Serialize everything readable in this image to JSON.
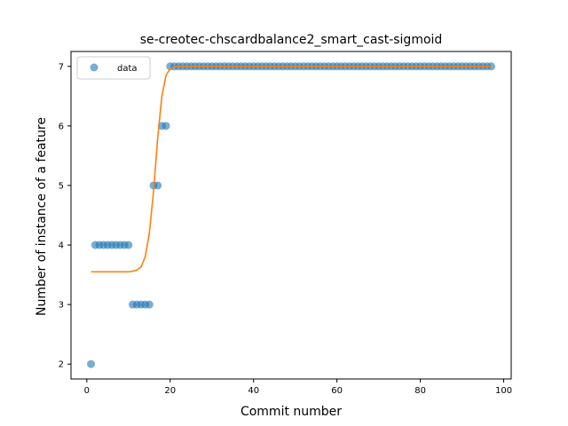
{
  "chart_data": {
    "type": "scatter",
    "title": "se-creotec-chscardbalance2_smart_cast-sigmoid",
    "xlabel": "Commit number",
    "ylabel": "Number of instance of a feature",
    "xlim": [
      -3.8,
      101.8
    ],
    "ylim": [
      1.75,
      7.25
    ],
    "xticks": [
      0,
      20,
      40,
      60,
      80,
      100
    ],
    "yticks": [
      2,
      3,
      4,
      5,
      6,
      7
    ],
    "grid": false,
    "legend_position": "top-left",
    "series": [
      {
        "name": "data",
        "kind": "scatter",
        "color": "#1f77b4",
        "x": [
          1,
          2,
          3,
          4,
          5,
          6,
          7,
          8,
          9,
          10,
          11,
          12,
          13,
          14,
          15,
          16,
          17,
          18,
          19,
          20,
          21,
          22,
          23,
          24,
          25,
          26,
          27,
          28,
          29,
          30,
          31,
          32,
          33,
          34,
          35,
          36,
          37,
          38,
          39,
          40,
          41,
          42,
          43,
          44,
          45,
          46,
          47,
          48,
          49,
          50,
          51,
          52,
          53,
          54,
          55,
          56,
          57,
          58,
          59,
          60,
          61,
          62,
          63,
          64,
          65,
          66,
          67,
          68,
          69,
          70,
          71,
          72,
          73,
          74,
          75,
          76,
          77,
          78,
          79,
          80,
          81,
          82,
          83,
          84,
          85,
          86,
          87,
          88,
          89,
          90,
          91,
          92,
          93,
          94,
          95,
          96,
          97
        ],
        "y": [
          2,
          4,
          4,
          4,
          4,
          4,
          4,
          4,
          4,
          4,
          3,
          3,
          3,
          3,
          3,
          5,
          5,
          6,
          6,
          7,
          7,
          7,
          7,
          7,
          7,
          7,
          7,
          7,
          7,
          7,
          7,
          7,
          7,
          7,
          7,
          7,
          7,
          7,
          7,
          7,
          7,
          7,
          7,
          7,
          7,
          7,
          7,
          7,
          7,
          7,
          7,
          7,
          7,
          7,
          7,
          7,
          7,
          7,
          7,
          7,
          7,
          7,
          7,
          7,
          7,
          7,
          7,
          7,
          7,
          7,
          7,
          7,
          7,
          7,
          7,
          7,
          7,
          7,
          7,
          7,
          7,
          7,
          7,
          7,
          7,
          7,
          7,
          7,
          7,
          7,
          7,
          7,
          7,
          7,
          7,
          7,
          7
        ]
      },
      {
        "kind": "line",
        "color": "#ff7f0e",
        "x": [
          1,
          2,
          3,
          4,
          5,
          6,
          7,
          8,
          9,
          10,
          11,
          12,
          13,
          14,
          15,
          16,
          17,
          18,
          19,
          20,
          21,
          22,
          23,
          24,
          25,
          30,
          40,
          50,
          60,
          70,
          80,
          90,
          97
        ],
        "y": [
          3.55,
          3.55,
          3.55,
          3.55,
          3.55,
          3.55,
          3.55,
          3.55,
          3.55,
          3.55,
          3.56,
          3.58,
          3.63,
          3.8,
          4.2,
          4.9,
          5.8,
          6.5,
          6.85,
          6.96,
          6.99,
          7.0,
          7.0,
          7.0,
          7.0,
          7.0,
          7.0,
          7.0,
          7.0,
          7.0,
          7.0,
          7.0,
          7.0
        ]
      }
    ]
  }
}
